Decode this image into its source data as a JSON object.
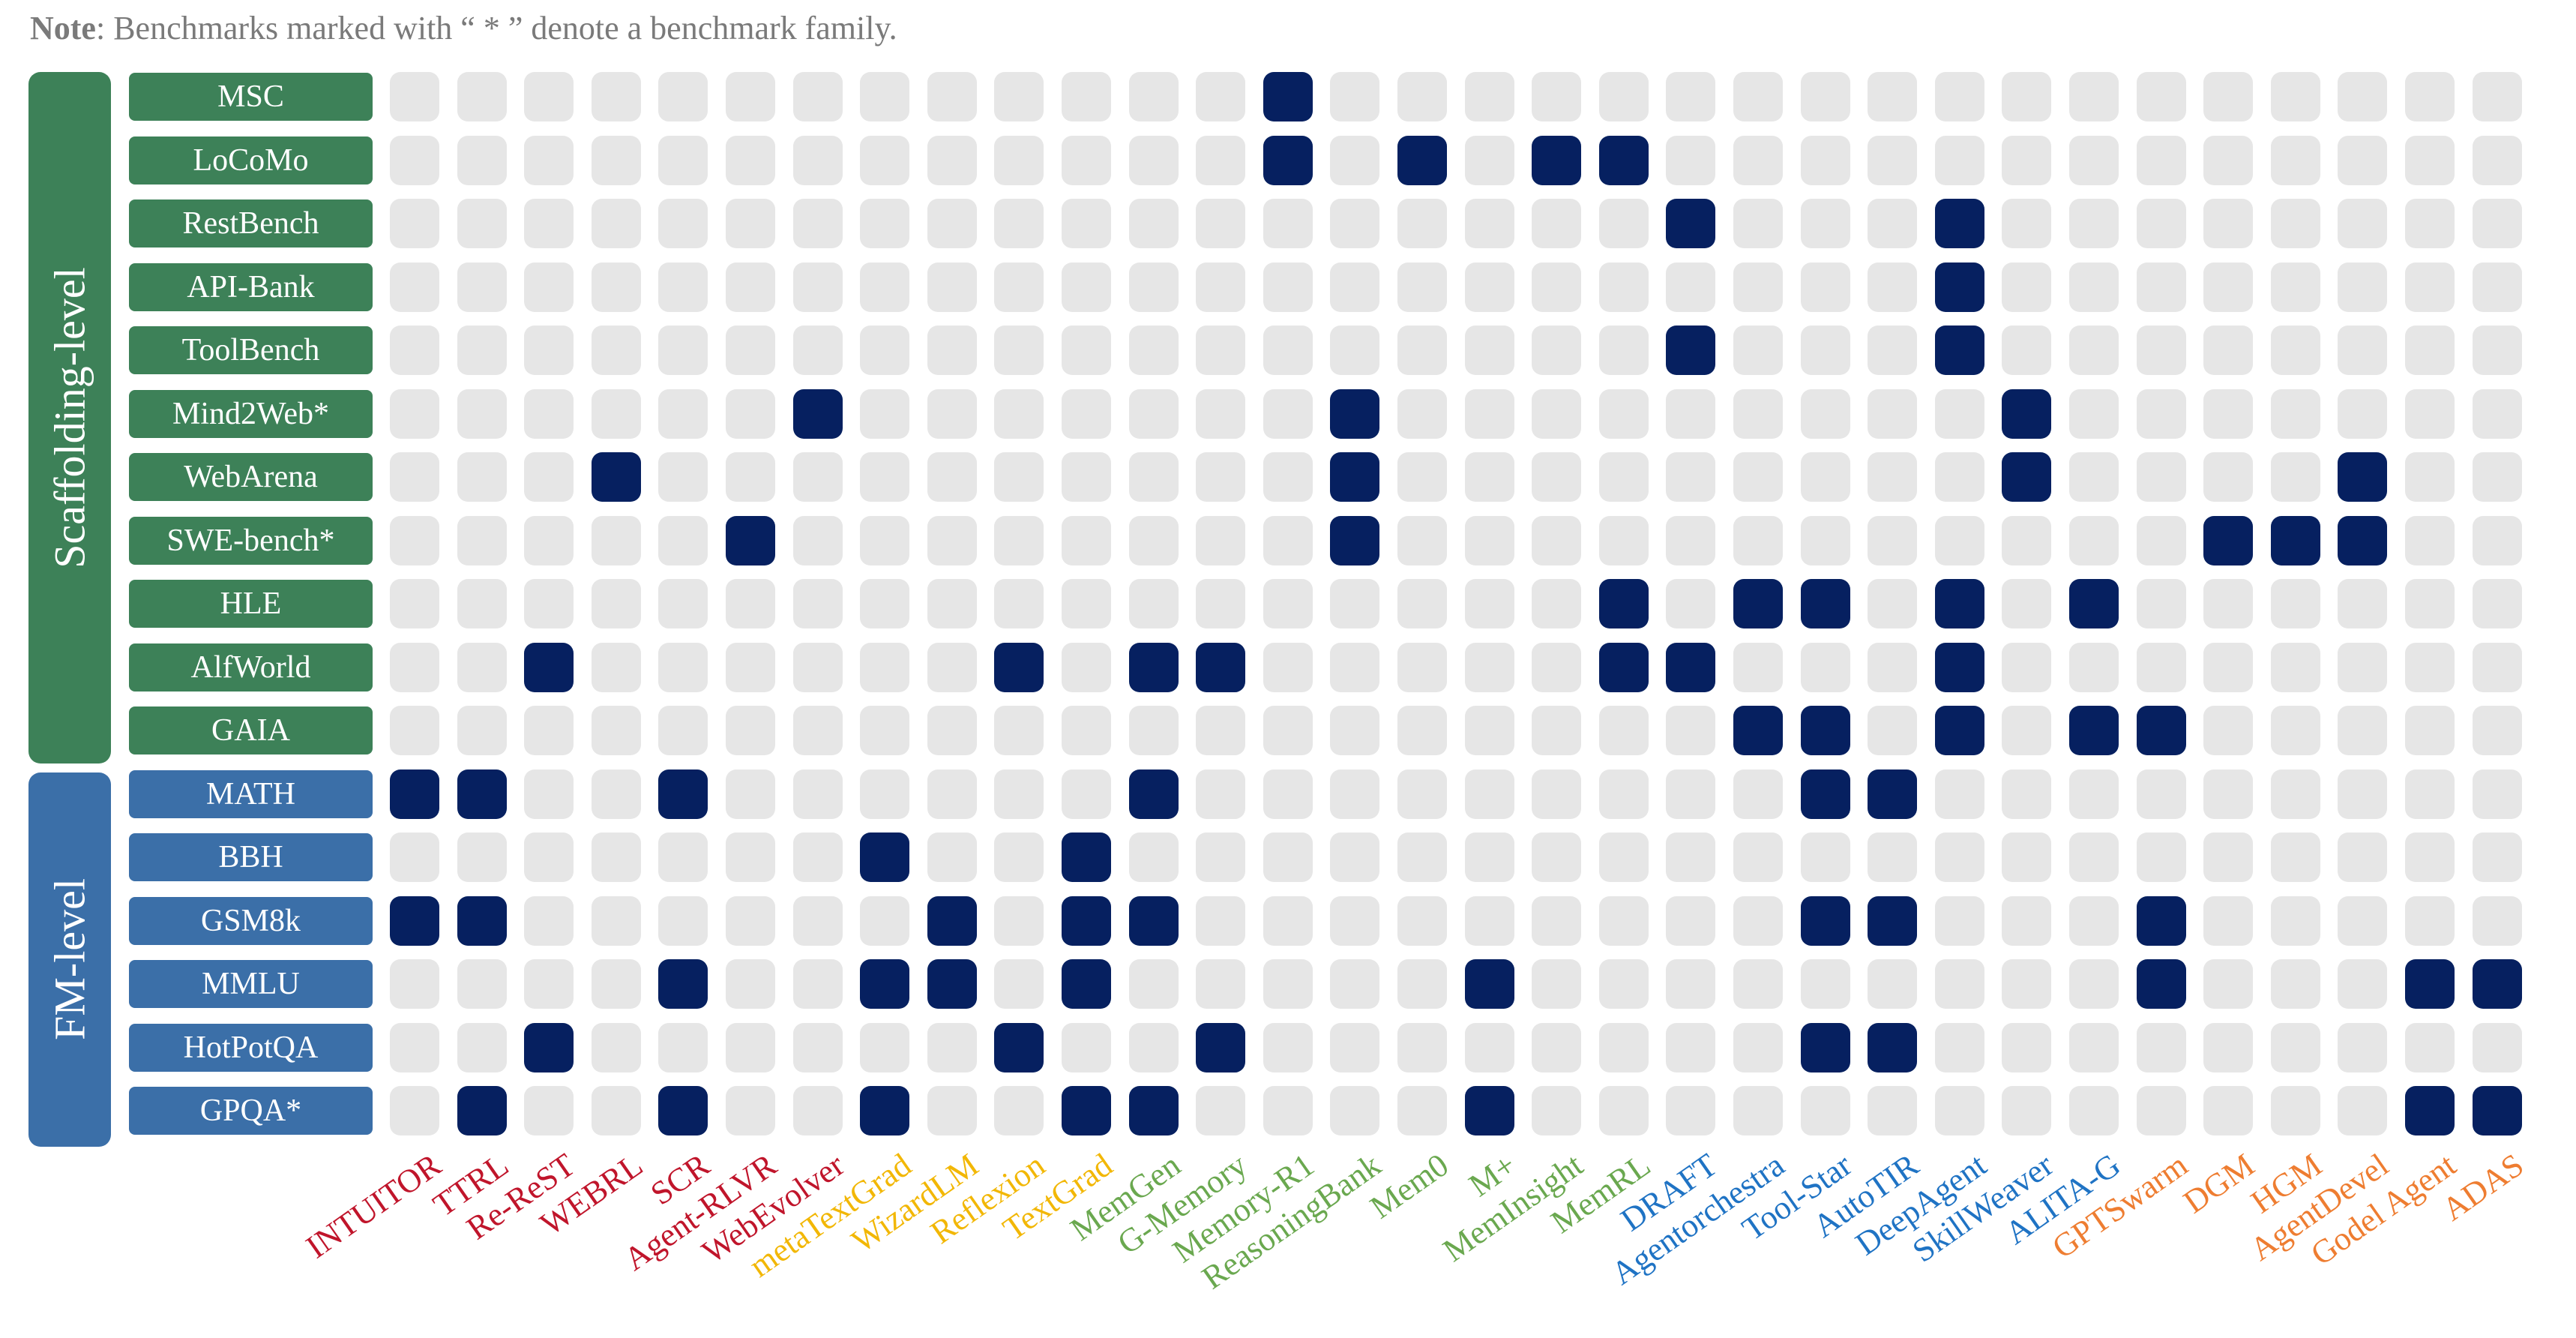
{
  "note": {
    "bold": "Note",
    "text": ": Benchmarks marked with “ * ” denote a benchmark family."
  },
  "groups": [
    {
      "label": "Scaffolding-level",
      "color": "#3d8158",
      "rows": 11
    },
    {
      "label": "FM-level",
      "color": "#3b6fa8",
      "rows": 6
    }
  ],
  "rows": [
    {
      "label": "MSC",
      "group": 0
    },
    {
      "label": "LoCoMo",
      "group": 0
    },
    {
      "label": "RestBench",
      "group": 0
    },
    {
      "label": "API-Bank",
      "group": 0
    },
    {
      "label": "ToolBench",
      "group": 0
    },
    {
      "label": "Mind2Web*",
      "group": 0
    },
    {
      "label": "WebArena",
      "group": 0
    },
    {
      "label": "SWE-bench*",
      "group": 0
    },
    {
      "label": "HLE",
      "group": 0
    },
    {
      "label": "AlfWorld",
      "group": 0
    },
    {
      "label": "GAIA",
      "group": 0
    },
    {
      "label": "MATH",
      "group": 1
    },
    {
      "label": "BBH",
      "group": 1
    },
    {
      "label": "GSM8k",
      "group": 1
    },
    {
      "label": "MMLU",
      "group": 1
    },
    {
      "label": "HotPotQA",
      "group": 1
    },
    {
      "label": "GPQA*",
      "group": 1
    }
  ],
  "columns": [
    {
      "label": "INTUITOR",
      "color": "#c0152b"
    },
    {
      "label": "TTRL",
      "color": "#c0152b"
    },
    {
      "label": "Re-ReST",
      "color": "#c0152b"
    },
    {
      "label": "WEBRL",
      "color": "#c0152b"
    },
    {
      "label": "SCR",
      "color": "#c0152b"
    },
    {
      "label": "Agent-RLVR",
      "color": "#c0152b"
    },
    {
      "label": "WebEvolver",
      "color": "#c0152b"
    },
    {
      "label": "metaTextGrad",
      "color": "#f2b705"
    },
    {
      "label": "WizardLM",
      "color": "#f2b705"
    },
    {
      "label": "Reflexion",
      "color": "#f2b705"
    },
    {
      "label": "TextGrad",
      "color": "#f2b705"
    },
    {
      "label": "MemGen",
      "color": "#6aa84f"
    },
    {
      "label": "G-Memory",
      "color": "#6aa84f"
    },
    {
      "label": "Memory-R1",
      "color": "#6aa84f"
    },
    {
      "label": "ReasoningBank",
      "color": "#6aa84f"
    },
    {
      "label": "Mem0",
      "color": "#6aa84f"
    },
    {
      "label": "M+",
      "color": "#6aa84f"
    },
    {
      "label": "MemInsight",
      "color": "#6aa84f"
    },
    {
      "label": "MemRL",
      "color": "#6aa84f"
    },
    {
      "label": "DRAFT",
      "color": "#1f73c4"
    },
    {
      "label": "Agentorchestra",
      "color": "#1f73c4"
    },
    {
      "label": "Tool-Star",
      "color": "#1f73c4"
    },
    {
      "label": "AutoTIR",
      "color": "#1f73c4"
    },
    {
      "label": "DeepAgent",
      "color": "#1f73c4"
    },
    {
      "label": "SkillWeaver",
      "color": "#1f73c4"
    },
    {
      "label": "ALITA-G",
      "color": "#1f73c4"
    },
    {
      "label": "GPTSwarm",
      "color": "#ee7d31"
    },
    {
      "label": "DGM",
      "color": "#ee7d31"
    },
    {
      "label": "HGM",
      "color": "#ee7d31"
    },
    {
      "label": "AgentDevel",
      "color": "#ee7d31"
    },
    {
      "label": "Godel Agent",
      "color": "#ee7d31"
    },
    {
      "label": "ADAS",
      "color": "#ee7d31"
    }
  ],
  "matrix": [
    [
      0,
      0,
      0,
      0,
      0,
      0,
      0,
      0,
      0,
      0,
      0,
      0,
      0,
      1,
      0,
      0,
      0,
      0,
      0,
      0,
      0,
      0,
      0,
      0,
      0,
      0,
      0,
      0,
      0,
      0,
      0,
      0
    ],
    [
      0,
      0,
      0,
      0,
      0,
      0,
      0,
      0,
      0,
      0,
      0,
      0,
      0,
      1,
      0,
      1,
      0,
      1,
      1,
      0,
      0,
      0,
      0,
      0,
      0,
      0,
      0,
      0,
      0,
      0,
      0,
      0
    ],
    [
      0,
      0,
      0,
      0,
      0,
      0,
      0,
      0,
      0,
      0,
      0,
      0,
      0,
      0,
      0,
      0,
      0,
      0,
      0,
      1,
      0,
      0,
      0,
      1,
      0,
      0,
      0,
      0,
      0,
      0,
      0,
      0
    ],
    [
      0,
      0,
      0,
      0,
      0,
      0,
      0,
      0,
      0,
      0,
      0,
      0,
      0,
      0,
      0,
      0,
      0,
      0,
      0,
      0,
      0,
      0,
      0,
      1,
      0,
      0,
      0,
      0,
      0,
      0,
      0,
      0
    ],
    [
      0,
      0,
      0,
      0,
      0,
      0,
      0,
      0,
      0,
      0,
      0,
      0,
      0,
      0,
      0,
      0,
      0,
      0,
      0,
      1,
      0,
      0,
      0,
      1,
      0,
      0,
      0,
      0,
      0,
      0,
      0,
      0
    ],
    [
      0,
      0,
      0,
      0,
      0,
      0,
      1,
      0,
      0,
      0,
      0,
      0,
      0,
      0,
      1,
      0,
      0,
      0,
      0,
      0,
      0,
      0,
      0,
      0,
      1,
      0,
      0,
      0,
      0,
      0,
      0,
      0
    ],
    [
      0,
      0,
      0,
      1,
      0,
      0,
      0,
      0,
      0,
      0,
      0,
      0,
      0,
      0,
      1,
      0,
      0,
      0,
      0,
      0,
      0,
      0,
      0,
      0,
      1,
      0,
      0,
      0,
      0,
      1,
      0,
      0
    ],
    [
      0,
      0,
      0,
      0,
      0,
      1,
      0,
      0,
      0,
      0,
      0,
      0,
      0,
      0,
      1,
      0,
      0,
      0,
      0,
      0,
      0,
      0,
      0,
      0,
      0,
      0,
      0,
      1,
      1,
      1,
      0,
      0
    ],
    [
      0,
      0,
      0,
      0,
      0,
      0,
      0,
      0,
      0,
      0,
      0,
      0,
      0,
      0,
      0,
      0,
      0,
      0,
      1,
      0,
      1,
      1,
      0,
      1,
      0,
      1,
      0,
      0,
      0,
      0,
      0,
      0
    ],
    [
      0,
      0,
      1,
      0,
      0,
      0,
      0,
      0,
      0,
      1,
      0,
      1,
      1,
      0,
      0,
      0,
      0,
      0,
      1,
      1,
      0,
      0,
      0,
      1,
      0,
      0,
      0,
      0,
      0,
      0,
      0,
      0
    ],
    [
      0,
      0,
      0,
      0,
      0,
      0,
      0,
      0,
      0,
      0,
      0,
      0,
      0,
      0,
      0,
      0,
      0,
      0,
      0,
      0,
      1,
      1,
      0,
      1,
      0,
      1,
      1,
      0,
      0,
      0,
      0,
      0
    ],
    [
      1,
      1,
      0,
      0,
      1,
      0,
      0,
      0,
      0,
      0,
      0,
      1,
      0,
      0,
      0,
      0,
      0,
      0,
      0,
      0,
      0,
      1,
      1,
      0,
      0,
      0,
      0,
      0,
      0,
      0,
      0,
      0
    ],
    [
      0,
      0,
      0,
      0,
      0,
      0,
      0,
      1,
      0,
      0,
      1,
      0,
      0,
      0,
      0,
      0,
      0,
      0,
      0,
      0,
      0,
      0,
      0,
      0,
      0,
      0,
      0,
      0,
      0,
      0,
      0,
      0
    ],
    [
      1,
      1,
      0,
      0,
      0,
      0,
      0,
      0,
      1,
      0,
      1,
      1,
      0,
      0,
      0,
      0,
      0,
      0,
      0,
      0,
      0,
      1,
      1,
      0,
      0,
      0,
      1,
      0,
      0,
      0,
      0,
      0
    ],
    [
      0,
      0,
      0,
      0,
      1,
      0,
      0,
      1,
      1,
      0,
      1,
      0,
      0,
      0,
      0,
      0,
      1,
      0,
      0,
      0,
      0,
      0,
      0,
      0,
      0,
      0,
      1,
      0,
      0,
      0,
      1,
      1
    ],
    [
      0,
      0,
      1,
      0,
      0,
      0,
      0,
      0,
      0,
      1,
      0,
      0,
      1,
      0,
      0,
      0,
      0,
      0,
      0,
      0,
      0,
      1,
      1,
      0,
      0,
      0,
      0,
      0,
      0,
      0,
      0,
      0
    ],
    [
      0,
      1,
      0,
      0,
      1,
      0,
      0,
      1,
      0,
      0,
      1,
      1,
      0,
      0,
      0,
      0,
      1,
      0,
      0,
      0,
      0,
      0,
      0,
      0,
      0,
      0,
      0,
      0,
      0,
      0,
      1,
      1
    ]
  ]
}
